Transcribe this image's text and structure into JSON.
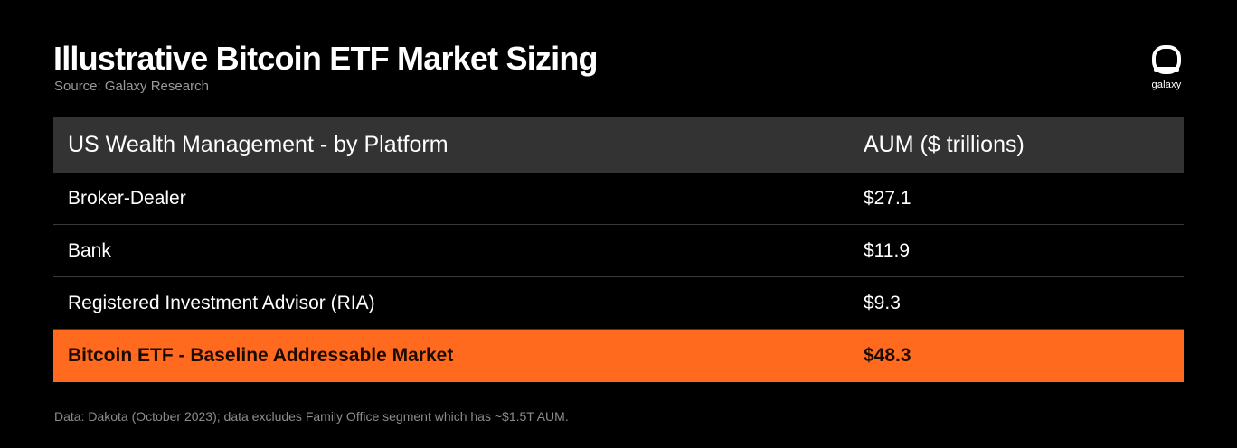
{
  "header": {
    "title": "Illustrative Bitcoin ETF Market Sizing",
    "source": "Source: Galaxy Research"
  },
  "logo": {
    "icon": "galaxy-logo-icon",
    "text": "galaxy"
  },
  "colors": {
    "background": "#000000",
    "header_row": "#333333",
    "highlight": "#ff6a1f"
  },
  "chart_data": {
    "type": "table",
    "columns": [
      "US Wealth Management - by Platform",
      "AUM ($ trillions)"
    ],
    "rows": [
      {
        "label": "Broker-Dealer",
        "value": "$27.1"
      },
      {
        "label": "Bank",
        "value": "$11.9"
      },
      {
        "label": "Registered Investment Advisor (RIA)",
        "value": "$9.3"
      }
    ],
    "total": {
      "label": "Bitcoin ETF - Baseline Addressable Market",
      "value": "$48.3"
    }
  },
  "footnote": "Data: Dakota (October 2023); data excludes Family Office segment which has ~$1.5T AUM."
}
